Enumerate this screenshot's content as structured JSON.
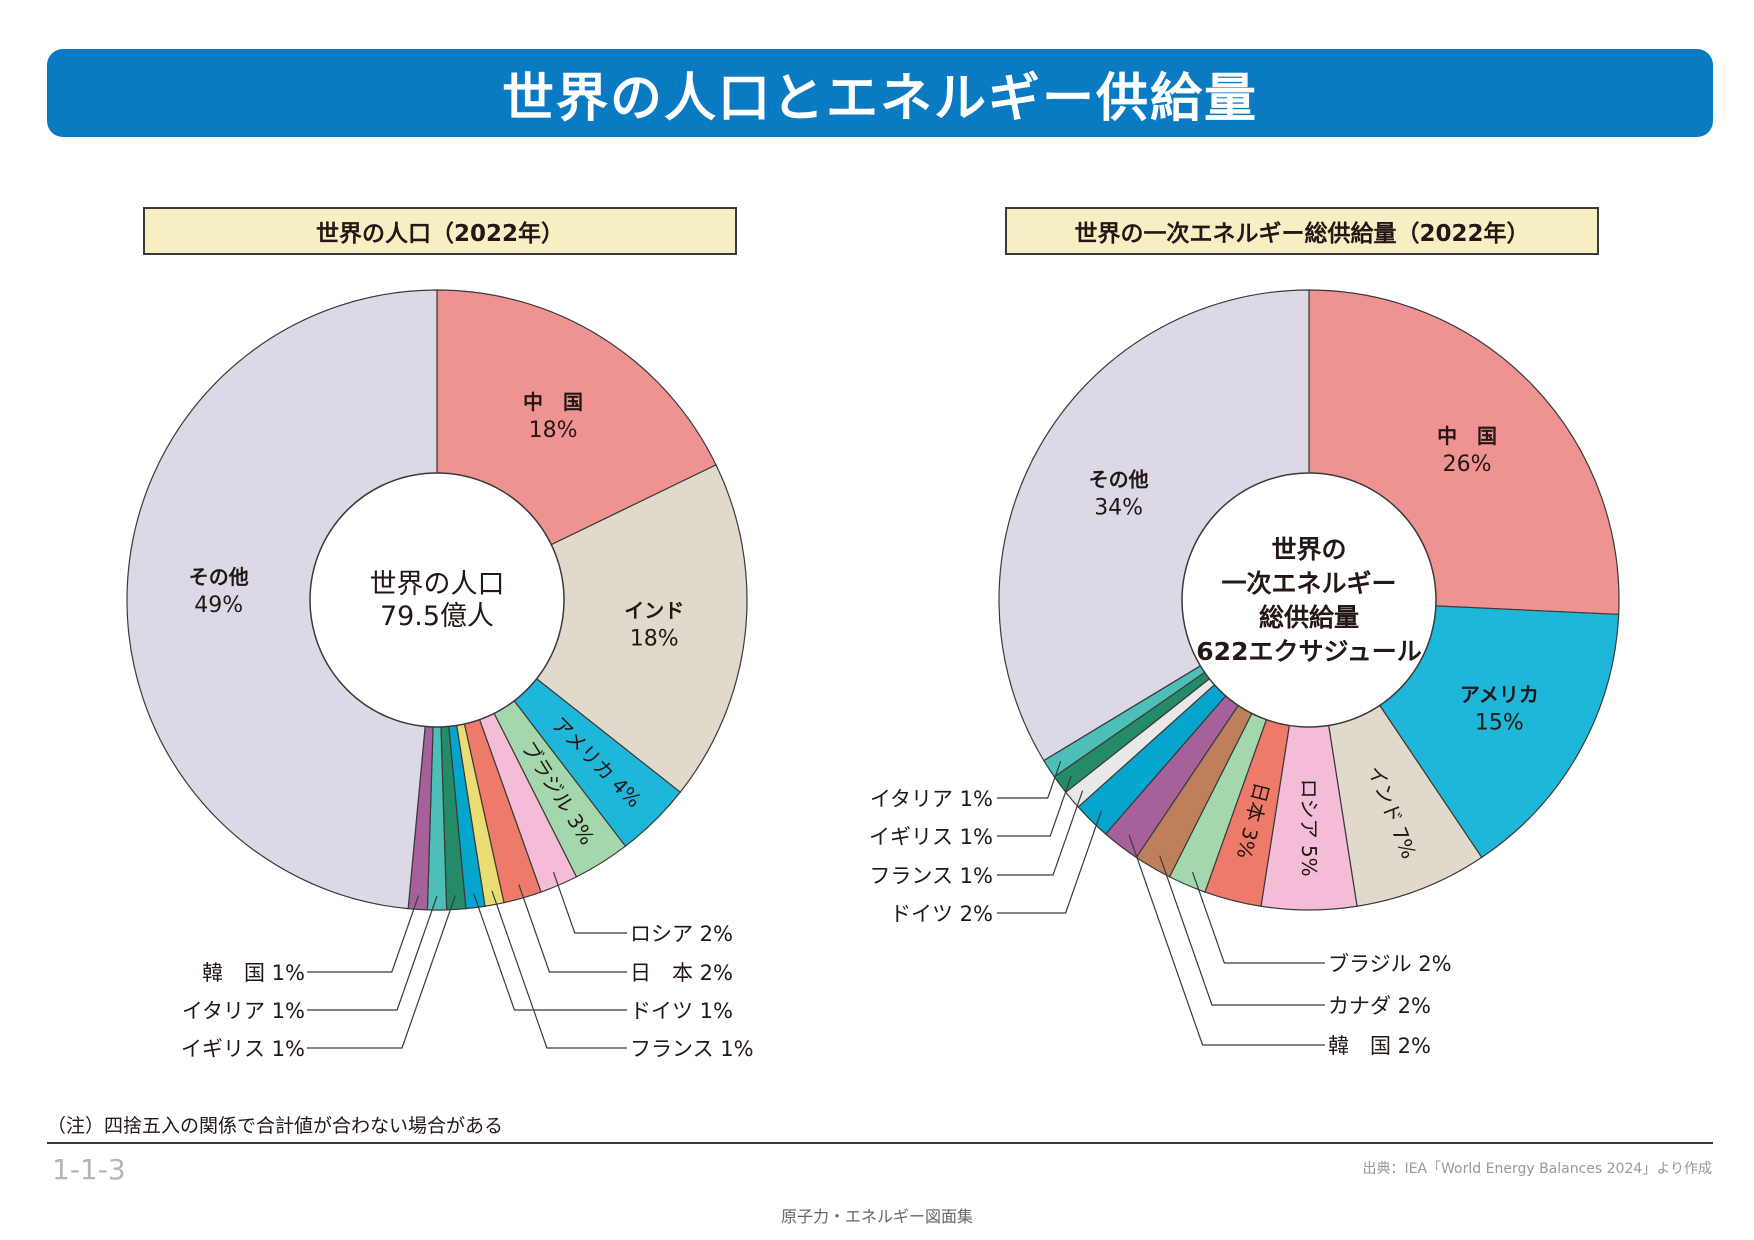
{
  "header": {
    "title": "世界の人口とエネルギー供給量"
  },
  "chart_data": [
    {
      "type": "pie",
      "variant": "donut",
      "title": "世界の人口（2022年）",
      "center_label": [
        "世界の人口",
        "79.5億人"
      ],
      "slices": [
        {
          "name": "中　国",
          "value": 18,
          "color": "#ef9292",
          "label_mode": "inside"
        },
        {
          "name": "インド",
          "value": 18,
          "color": "#e1d9cc",
          "label_mode": "inside"
        },
        {
          "name": "アメリカ",
          "value": 4,
          "color": "#1fb7d9",
          "label_mode": "radial"
        },
        {
          "name": "ブラジル",
          "value": 3,
          "color": "#a5d7ad",
          "label_mode": "radial"
        },
        {
          "name": "ロシア",
          "value": 2,
          "color": "#f5bcd8",
          "label_mode": "leader-right"
        },
        {
          "name": "日　本",
          "value": 2,
          "color": "#ee7b6a",
          "label_mode": "leader-right"
        },
        {
          "name": "フランス",
          "value": 1,
          "color": "#ecdc74",
          "label_mode": "leader-right"
        },
        {
          "name": "ドイツ",
          "value": 1,
          "color": "#04a6ce",
          "label_mode": "leader-right"
        },
        {
          "name": "イギリス",
          "value": 1,
          "color": "#258a68",
          "label_mode": "leader-left"
        },
        {
          "name": "イタリア",
          "value": 1,
          "color": "#4dbfb8",
          "label_mode": "leader-left"
        },
        {
          "name": "韓　国",
          "value": 1,
          "color": "#a6619b",
          "label_mode": "leader-left"
        },
        {
          "name": "その他",
          "value": 49,
          "color": "#ddd8e6",
          "label_mode": "inside"
        }
      ]
    },
    {
      "type": "pie",
      "variant": "donut",
      "title": "世界の一次エネルギー総供給量（2022年）",
      "center_label": [
        "世界の",
        "一次エネルギー",
        "総供給量",
        "622エクサジュール"
      ],
      "slices": [
        {
          "name": "中　国",
          "value": 26,
          "color": "#ef9292",
          "label_mode": "inside"
        },
        {
          "name": "アメリカ",
          "value": 15,
          "color": "#1fb7d9",
          "label_mode": "inside"
        },
        {
          "name": "インド",
          "value": 7,
          "color": "#e1d9cc",
          "label_mode": "radial"
        },
        {
          "name": "ロシア",
          "value": 5,
          "color": "#f5bcd8",
          "label_mode": "radial"
        },
        {
          "name": "日　本",
          "value": 3,
          "color": "#ee7b6a",
          "label_mode": "radial"
        },
        {
          "name": "ブラジル",
          "value": 2,
          "color": "#a5d7ad",
          "label_mode": "leader-right"
        },
        {
          "name": "カナダ",
          "value": 2,
          "color": "#bd805a",
          "label_mode": "leader-right"
        },
        {
          "name": "韓　国",
          "value": 2,
          "color": "#a6619b",
          "label_mode": "leader-right"
        },
        {
          "name": "ドイツ",
          "value": 2,
          "color": "#04a6ce",
          "label_mode": "leader-left"
        },
        {
          "name": "フランス",
          "value": 1,
          "color": "#e8e8e8",
          "label_mode": "leader-left"
        },
        {
          "name": "イギリス",
          "value": 1,
          "color": "#258a68",
          "label_mode": "leader-left"
        },
        {
          "name": "イタリア",
          "value": 1,
          "color": "#4dbfb8",
          "label_mode": "leader-left"
        },
        {
          "name": "その他",
          "value": 34,
          "color": "#ddd8e6",
          "label_mode": "inside"
        }
      ]
    }
  ],
  "note": "（注）四捨五入の関係で合計値が合わない場合がある",
  "page_number": "1-1-3",
  "source": "出典：IEA「World Energy Balances 2024」より作成",
  "footer": "原子力・エネルギー図面集"
}
